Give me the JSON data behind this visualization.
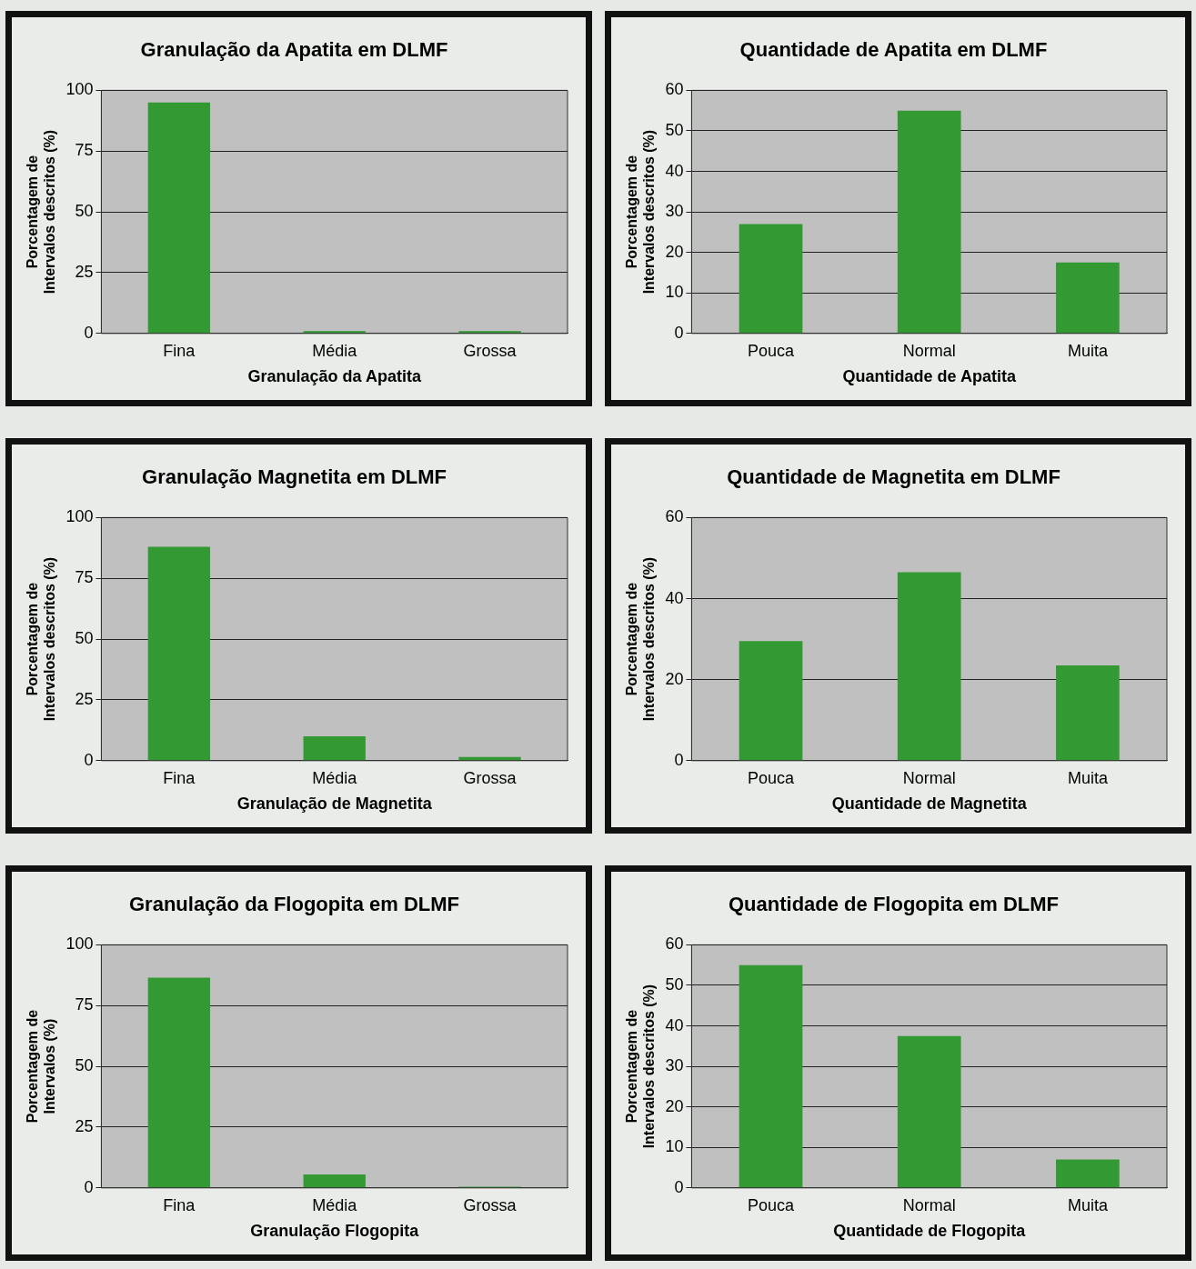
{
  "chart_data": [
    {
      "type": "bar",
      "title": "Granulação da Apatita em DLMF",
      "xlabel": "Granulação da Apatita",
      "ylabel": "Porcentagem de\nIntervalos descritos (%)",
      "categories": [
        "Fina",
        "Média",
        "Grossa"
      ],
      "values": [
        95,
        1,
        1
      ],
      "color": "#339933",
      "ylim": [
        0,
        100
      ],
      "yticks": [
        0,
        25,
        50,
        75,
        100
      ],
      "grid": "y",
      "legend": false
    },
    {
      "type": "bar",
      "title": "Quantidade de Apatita em DLMF",
      "xlabel": "Quantidade de Apatita",
      "ylabel": "Porcentagem de\nIntervalos descritos (%)",
      "categories": [
        "Pouca",
        "Normal",
        "Muita"
      ],
      "values": [
        27,
        55,
        17.5
      ],
      "color": "#339933",
      "ylim": [
        0,
        60
      ],
      "yticks": [
        0,
        10,
        20,
        30,
        40,
        50,
        60
      ],
      "grid": "y",
      "legend": false
    },
    {
      "type": "bar",
      "title": "Granulação Magnetita em DLMF",
      "xlabel": "Granulação de Magnetita",
      "ylabel": "Porcentagem de\nIntervalos descritos (%)",
      "categories": [
        "Fina",
        "Média",
        "Grossa"
      ],
      "values": [
        88,
        10,
        1.5
      ],
      "color": "#339933",
      "ylim": [
        0,
        100
      ],
      "yticks": [
        0,
        25,
        50,
        75,
        100
      ],
      "grid": "y",
      "legend": false
    },
    {
      "type": "bar",
      "title": "Quantidade de Magnetita em DLMF",
      "xlabel": "Quantidade de Magnetita",
      "ylabel": "Porcentagem de\nIntervalos descritos (%)",
      "categories": [
        "Pouca",
        "Normal",
        "Muita"
      ],
      "values": [
        29.5,
        46.5,
        23.5
      ],
      "color": "#339933",
      "ylim": [
        0,
        60
      ],
      "yticks": [
        0,
        20,
        40,
        60
      ],
      "grid": "y",
      "legend": false
    },
    {
      "type": "bar",
      "title": "Granulação da Flogopita em DLMF",
      "xlabel": "Granulação Flogopita",
      "ylabel": "Porcentagem de\nIntervalos (%)",
      "categories": [
        "Fina",
        "Média",
        "Grossa"
      ],
      "values": [
        86.5,
        5.5,
        0.5
      ],
      "color": "#339933",
      "ylim": [
        0,
        100
      ],
      "yticks": [
        0,
        25,
        50,
        75,
        100
      ],
      "grid": "y",
      "legend": false
    },
    {
      "type": "bar",
      "title": "Quantidade de Flogopita em DLMF",
      "xlabel": "Quantidade de Flogopita",
      "ylabel": "Porcentagem de\nIntervalos descritos (%)",
      "categories": [
        "Pouca",
        "Normal",
        "Muita"
      ],
      "values": [
        55,
        37.5,
        7
      ],
      "color": "#339933",
      "ylim": [
        0,
        60
      ],
      "yticks": [
        0,
        10,
        20,
        30,
        40,
        50,
        60
      ],
      "grid": "y",
      "legend": false
    }
  ]
}
